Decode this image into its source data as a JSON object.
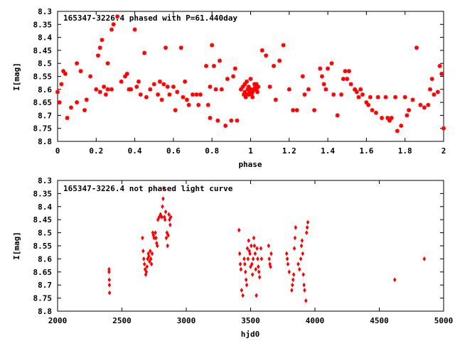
{
  "chart_data": [
    {
      "type": "scatter",
      "title": "165347-3226.4 phased with P=61.440day",
      "xlabel": "phase",
      "ylabel": "I[mag]",
      "xlim": [
        0,
        2
      ],
      "ylim": [
        8.3,
        8.8
      ],
      "y_inverted": true,
      "grid": false,
      "marker_color": "#ff0000",
      "xticks": [
        0,
        0.2,
        0.4,
        0.6,
        0.8,
        1,
        1.2,
        1.4,
        1.6,
        1.8,
        2
      ],
      "yticks": [
        8.3,
        8.35,
        8.4,
        8.45,
        8.5,
        8.55,
        8.6,
        8.65,
        8.7,
        8.75,
        8.8
      ],
      "xtick_labels": [
        "0",
        "0.2",
        "0.4",
        "0.6",
        "0.8",
        "1",
        "1.2",
        "1.4",
        "1.6",
        "1.8",
        "2"
      ],
      "ytick_labels": [
        "8.3",
        "8.35",
        "8.4",
        "8.45",
        "8.5",
        "8.55",
        "8.6",
        "8.65",
        "8.7",
        "8.75",
        "8.8"
      ],
      "x": [
        0.0,
        0.01,
        0.02,
        0.03,
        0.04,
        0.05,
        0.07,
        0.1,
        0.1,
        0.12,
        0.14,
        0.15,
        0.17,
        0.2,
        0.21,
        0.22,
        0.22,
        0.23,
        0.24,
        0.25,
        0.26,
        0.26,
        0.28,
        0.28,
        0.29,
        0.31,
        0.33,
        0.35,
        0.36,
        0.37,
        0.38,
        0.4,
        0.41,
        0.42,
        0.43,
        0.45,
        0.46,
        0.48,
        0.5,
        0.52,
        0.53,
        0.54,
        0.55,
        0.56,
        0.57,
        0.58,
        0.6,
        0.61,
        0.62,
        0.64,
        0.65,
        0.66,
        0.67,
        0.68,
        0.7,
        0.72,
        0.73,
        0.74,
        0.77,
        0.78,
        0.79,
        0.79,
        0.8,
        0.81,
        0.82,
        0.83,
        0.84,
        0.85,
        0.87,
        0.88,
        0.9,
        0.91,
        0.92,
        0.93,
        0.95,
        0.96,
        0.97,
        0.98,
        0.99,
        1.0,
        1.01,
        1.02,
        1.03,
        1.04,
        0.965,
        0.975,
        0.985,
        0.995,
        1.005,
        1.015,
        1.025,
        1.035,
        0.97,
        0.98,
        0.99,
        1.0,
        1.01,
        1.02,
        1.03,
        1.06,
        1.08,
        1.1,
        1.12,
        1.13,
        1.15,
        1.17,
        1.2,
        1.22,
        1.24,
        1.27,
        1.28,
        1.3,
        1.33,
        1.36,
        1.37,
        1.38,
        1.39,
        1.4,
        1.42,
        1.43,
        1.45,
        1.47,
        1.48,
        1.49,
        1.5,
        1.51,
        1.52,
        1.54,
        1.55,
        1.56,
        1.57,
        1.58,
        1.6,
        1.61,
        1.62,
        1.63,
        1.65,
        1.66,
        1.68,
        1.7,
        1.71,
        1.72,
        1.73,
        1.75,
        1.76,
        1.78,
        1.8,
        1.81,
        1.82,
        1.84,
        1.86,
        1.88,
        1.9,
        1.92,
        1.93,
        1.94,
        1.95,
        1.97,
        1.98,
        1.99,
        2.0
      ],
      "y": [
        8.61,
        8.65,
        8.58,
        8.53,
        8.54,
        8.71,
        8.67,
        8.5,
        8.65,
        8.53,
        8.68,
        8.64,
        8.55,
        8.6,
        8.47,
        8.44,
        8.61,
        8.41,
        8.59,
        8.62,
        8.6,
        8.5,
        8.37,
        8.6,
        8.35,
        8.32,
        8.57,
        8.55,
        8.54,
        8.6,
        8.6,
        8.37,
        8.59,
        8.57,
        8.62,
        8.46,
        8.63,
        8.6,
        8.58,
        8.62,
        8.57,
        8.64,
        8.58,
        8.44,
        8.59,
        8.62,
        8.59,
        8.68,
        8.61,
        8.44,
        8.63,
        8.57,
        8.64,
        8.66,
        8.62,
        8.62,
        8.66,
        8.62,
        8.51,
        8.66,
        8.59,
        8.71,
        8.43,
        8.51,
        8.6,
        8.72,
        8.49,
        8.6,
        8.74,
        8.56,
        8.72,
        8.55,
        8.52,
        8.72,
        8.6,
        8.59,
        8.61,
        8.62,
        8.59,
        8.6,
        8.61,
        8.6,
        8.58,
        8.59,
        8.62,
        8.63,
        8.6,
        8.61,
        8.62,
        8.6,
        8.59,
        8.61,
        8.58,
        8.57,
        8.62,
        8.56,
        8.63,
        8.58,
        8.6,
        8.45,
        8.47,
        8.59,
        8.51,
        8.64,
        8.49,
        8.43,
        8.6,
        8.68,
        8.68,
        8.55,
        8.62,
        8.6,
        8.68,
        8.52,
        8.55,
        8.58,
        8.6,
        8.52,
        8.5,
        8.62,
        8.7,
        8.62,
        8.56,
        8.53,
        8.56,
        8.53,
        8.58,
        8.6,
        8.61,
        8.63,
        8.6,
        8.62,
        8.65,
        8.66,
        8.63,
        8.68,
        8.69,
        8.63,
        8.71,
        8.63,
        8.71,
        8.72,
        8.71,
        8.63,
        8.76,
        8.74,
        8.63,
        8.7,
        8.68,
        8.64,
        8.44,
        8.66,
        8.67,
        8.66,
        8.6,
        8.56,
        8.62,
        8.61,
        8.51,
        8.54,
        8.75
      ]
    },
    {
      "type": "scatter",
      "title": "165347-3226.4 not phased light curve",
      "xlabel": "hjd0",
      "ylabel": "I[mag]",
      "xlim": [
        2000,
        5000
      ],
      "ylim": [
        8.3,
        8.8
      ],
      "y_inverted": true,
      "grid": false,
      "marker_color": "#ff0000",
      "xticks": [
        2000,
        2500,
        3000,
        3500,
        4000,
        4500,
        5000
      ],
      "yticks": [
        8.3,
        8.35,
        8.4,
        8.45,
        8.5,
        8.55,
        8.6,
        8.65,
        8.7,
        8.75,
        8.8
      ],
      "xtick_labels": [
        "2000",
        "2500",
        "3000",
        "3500",
        "4000",
        "4500",
        "5000"
      ],
      "ytick_labels": [
        "8.3",
        "8.35",
        "8.4",
        "8.45",
        "8.5",
        "8.55",
        "8.6",
        "8.65",
        "8.7",
        "8.75",
        "8.8"
      ],
      "x": [
        2400,
        2400,
        2402,
        2403,
        2404,
        2660,
        2665,
        2670,
        2675,
        2680,
        2685,
        2690,
        2695,
        2700,
        2705,
        2710,
        2715,
        2720,
        2725,
        2730,
        2735,
        2740,
        2745,
        2750,
        2760,
        2765,
        2770,
        2775,
        2780,
        2790,
        2800,
        2810,
        2815,
        2820,
        2825,
        2830,
        2835,
        2840,
        2845,
        2850,
        2855,
        2860,
        2865,
        2870,
        2875,
        2880,
        3410,
        3415,
        3420,
        3425,
        3430,
        3440,
        3450,
        3455,
        3460,
        3465,
        3470,
        3475,
        3480,
        3485,
        3490,
        3495,
        3500,
        3505,
        3510,
        3515,
        3520,
        3525,
        3530,
        3535,
        3540,
        3545,
        3550,
        3555,
        3560,
        3565,
        3570,
        3580,
        3585,
        3640,
        3645,
        3650,
        3655,
        3660,
        3780,
        3785,
        3790,
        3800,
        3820,
        3825,
        3830,
        3835,
        3840,
        3845,
        3850,
        3870,
        3880,
        3890,
        3895,
        3900,
        3905,
        3910,
        3915,
        3920,
        3930,
        3935,
        3940,
        3945,
        4620,
        4850
      ],
      "y": [
        8.64,
        8.65,
        8.68,
        8.7,
        8.73,
        8.52,
        8.57,
        8.6,
        8.62,
        8.64,
        8.66,
        8.65,
        8.63,
        8.6,
        8.58,
        8.59,
        8.61,
        8.57,
        8.6,
        8.62,
        8.58,
        8.5,
        8.51,
        8.52,
        8.5,
        8.52,
        8.54,
        8.55,
        8.45,
        8.44,
        8.43,
        8.44,
        8.4,
        8.37,
        8.33,
        8.44,
        8.45,
        8.42,
        8.52,
        8.5,
        8.55,
        8.51,
        8.43,
        8.45,
        8.47,
        8.44,
        8.49,
        8.58,
        8.62,
        8.64,
        8.72,
        8.74,
        8.6,
        8.62,
        8.65,
        8.68,
        8.7,
        8.56,
        8.6,
        8.53,
        8.57,
        8.58,
        8.63,
        8.55,
        8.62,
        8.66,
        8.6,
        8.52,
        8.55,
        8.58,
        8.64,
        8.74,
        8.56,
        8.6,
        8.63,
        8.65,
        8.67,
        8.56,
        8.6,
        8.55,
        8.6,
        8.62,
        8.63,
        8.58,
        8.58,
        8.6,
        8.62,
        8.65,
        8.72,
        8.7,
        8.68,
        8.66,
        8.56,
        8.52,
        8.48,
        8.62,
        8.64,
        8.6,
        8.55,
        8.53,
        8.58,
        8.66,
        8.7,
        8.72,
        8.76,
        8.5,
        8.48,
        8.46,
        8.68,
        8.6
      ]
    }
  ]
}
